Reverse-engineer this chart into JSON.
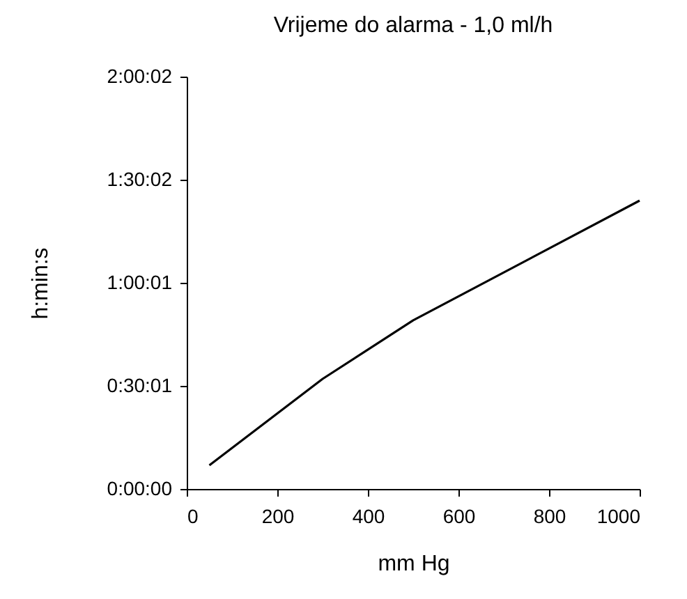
{
  "chart_data": {
    "type": "line",
    "title": "Vrijeme do alarma - 1,0 ml/h",
    "xlabel": "mm Hg",
    "ylabel": "h:min:s",
    "x": [
      50,
      300,
      500,
      1000
    ],
    "series": [
      {
        "color": "#000000",
        "values": [
          0.115,
          0.534,
          0.818,
          1.399
        ]
      }
    ],
    "xlim": [
      0,
      1000
    ],
    "xticks": [
      0,
      200,
      400,
      600,
      800,
      1000
    ],
    "ylim": [
      0,
      2.000556
    ],
    "yticks": [
      {
        "value": 0,
        "label": "0:00:00"
      },
      {
        "value": 0.500278,
        "label": "0:30:01"
      },
      {
        "value": 1.000278,
        "label": "1:00:01"
      },
      {
        "value": 1.500556,
        "label": "1:30:02"
      },
      {
        "value": 2.000556,
        "label": "2:00:02"
      }
    ],
    "grid": false,
    "legend": false,
    "marker": "none",
    "line_style": "solid"
  }
}
